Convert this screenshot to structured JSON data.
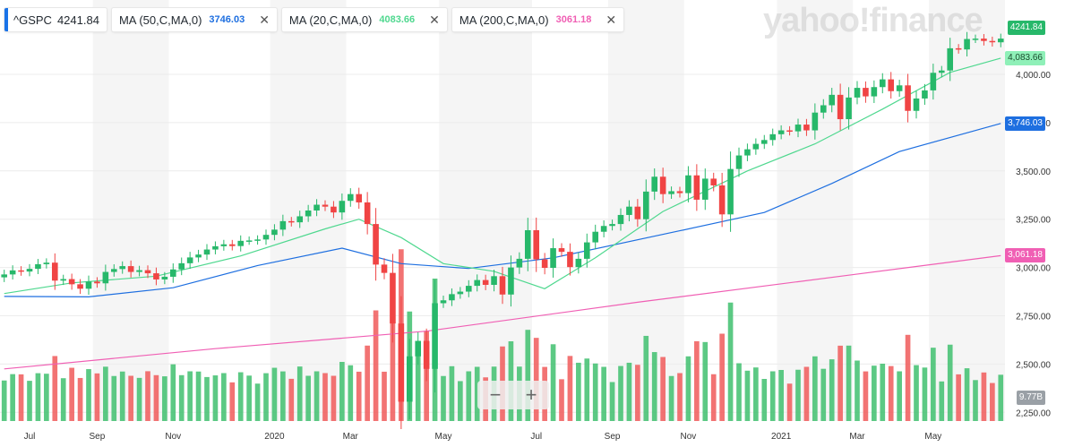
{
  "brand": "yahoo!finance",
  "legend": {
    "symbol": "^GSPC",
    "price": "4241.84",
    "indicators": [
      {
        "label": "MA (50,C,MA,0)",
        "value": "3746.03",
        "color": "#1e6fe0"
      },
      {
        "label": "MA (20,C,MA,0)",
        "value": "4083.66",
        "color": "#4fd88f"
      },
      {
        "label": "MA (200,C,MA,0)",
        "value": "3061.18",
        "color": "#f05fb4"
      }
    ],
    "close_glyph": "✕"
  },
  "zoom": {
    "minus": "−",
    "plus": "+"
  },
  "price_tags": [
    {
      "text": "4241.84",
      "value": 4241.84,
      "bg": "#27b86a",
      "fg": "#ffffff"
    },
    {
      "text": "4,083.66",
      "value": 4083.66,
      "bg": "#8ff0b8",
      "fg": "#1b4d2e"
    },
    {
      "text": "3,746.03",
      "value": 3746.03,
      "bg": "#1e6fe0",
      "fg": "#ffffff"
    },
    {
      "text": "3,061.18",
      "value": 3061.18,
      "bg": "#f05fb4",
      "fg": "#ffffff"
    }
  ],
  "volume_tag": "9.77B",
  "chart_data": {
    "type": "candlestick",
    "title": "",
    "y_ticks": [
      "4,000.00",
      "3,750.00",
      "3,500.00",
      "3,250.00",
      "3,000.00",
      "2,750.00",
      "2,500.00",
      "2,250.00"
    ],
    "y_tick_values": [
      4000,
      3750,
      3500,
      3250,
      3000,
      2750,
      2500,
      2250
    ],
    "ylim": [
      2205,
      4385
    ],
    "x_ticks": [
      "Jul",
      "Sep",
      "Nov",
      "2020",
      "Mar",
      "May",
      "Jul",
      "Sep",
      "Nov",
      "2021",
      "Mar",
      "May"
    ],
    "x_tick_weeks": [
      3,
      11,
      20,
      32,
      41,
      52,
      63,
      72,
      81,
      92,
      101,
      110
    ],
    "week_count": 119,
    "week_closes": [
      2964,
      2985,
      2979,
      2993,
      3017,
      3025,
      2932,
      2940,
      2913,
      2890,
      2927,
      2918,
      2977,
      2992,
      3007,
      2977,
      2986,
      2970,
      2938,
      2952,
      2990,
      3022,
      3052,
      3067,
      3093,
      3110,
      3120,
      3111,
      3138,
      3140,
      3145,
      3169,
      3196,
      3240,
      3234,
      3265,
      3295,
      3325,
      3315,
      3285,
      3345,
      3380,
      3337,
      3225,
      3015,
      2972,
      2710,
      2305,
      2540,
      2620,
      2475,
      2815,
      2830,
      2862,
      2875,
      2905,
      2935,
      2910,
      2955,
      2860,
      3000,
      3045,
      3193,
      3042,
      2998,
      3100,
      3081,
      3002,
      3045,
      3130,
      3185,
      3215,
      3225,
      3272,
      3315,
      3250,
      3393,
      3470,
      3380,
      3395,
      3385,
      3477,
      3351,
      3460,
      3425,
      3275,
      3510,
      3580,
      3612,
      3640,
      3660,
      3690,
      3710,
      3705,
      3740,
      3710,
      3802,
      3840,
      3894,
      3768,
      3880,
      3930,
      3886,
      3934,
      3974,
      3913,
      3943,
      3811,
      3875,
      3917,
      4008,
      4020,
      4135,
      4129,
      4183,
      4185,
      4173,
      4166,
      4185
    ],
    "series": [
      {
        "name": "MA (50,C,MA,0)",
        "color": "#1e6fe0",
        "points": [
          [
            0,
            2850
          ],
          [
            10,
            2848
          ],
          [
            20,
            2895
          ],
          [
            30,
            3010
          ],
          [
            40,
            3100
          ],
          [
            47,
            3020
          ],
          [
            55,
            2995
          ],
          [
            65,
            3050
          ],
          [
            80,
            3190
          ],
          [
            90,
            3285
          ],
          [
            98,
            3435
          ],
          [
            106,
            3600
          ],
          [
            118,
            3746
          ]
        ]
      },
      {
        "name": "MA (20,C,MA,0)",
        "color": "#4fd88f",
        "points": [
          [
            0,
            2865
          ],
          [
            8,
            2920
          ],
          [
            18,
            2955
          ],
          [
            28,
            3060
          ],
          [
            38,
            3200
          ],
          [
            42,
            3250
          ],
          [
            47,
            3155
          ],
          [
            52,
            3020
          ],
          [
            58,
            2980
          ],
          [
            64,
            2890
          ],
          [
            70,
            3050
          ],
          [
            78,
            3290
          ],
          [
            88,
            3500
          ],
          [
            96,
            3640
          ],
          [
            104,
            3820
          ],
          [
            112,
            4010
          ],
          [
            118,
            4084
          ]
        ]
      },
      {
        "name": "MA (200,C,MA,0)",
        "color": "#f05fb4",
        "points": [
          [
            0,
            2475
          ],
          [
            25,
            2580
          ],
          [
            50,
            2670
          ],
          [
            75,
            2820
          ],
          [
            100,
            2960
          ],
          [
            118,
            3061
          ]
        ]
      }
    ],
    "volume": {
      "color_up": "#3fbf6f",
      "color_down": "#f05a5a"
    },
    "grid": true
  }
}
